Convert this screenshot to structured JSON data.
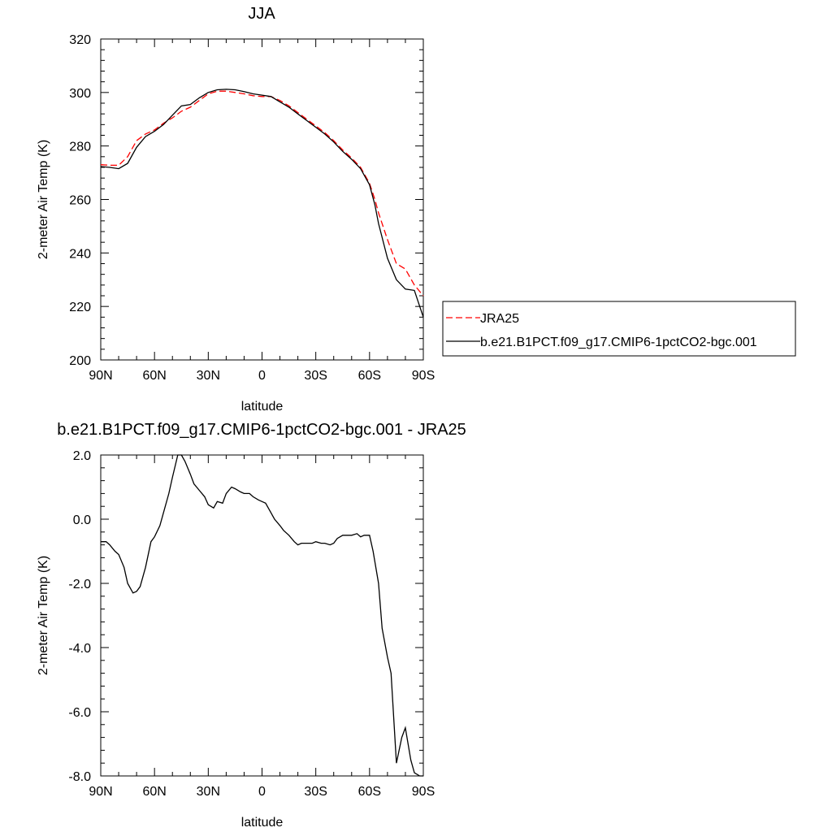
{
  "chart_data": [
    {
      "type": "line",
      "title": "JJA",
      "xlabel": "latitude",
      "ylabel": "2-meter Air Temp (K)",
      "x_range": [
        90,
        -90
      ],
      "ylim": [
        200,
        320
      ],
      "x_ticks": [
        90,
        60,
        30,
        0,
        -30,
        -60,
        -90
      ],
      "x_tick_labels": [
        "90N",
        "60N",
        "30N",
        "0",
        "30S",
        "60S",
        "90S"
      ],
      "y_ticks": [
        200,
        220,
        240,
        260,
        280,
        300,
        320
      ],
      "y_tick_labels": [
        "200",
        "220",
        "240",
        "260",
        "280",
        "300",
        "320"
      ],
      "legend_position": "right",
      "series": [
        {
          "name": "JRA25",
          "color": "#ff0000",
          "dash": "dashed",
          "x": [
            90,
            85,
            80,
            75,
            70,
            65,
            60,
            55,
            50,
            45,
            40,
            35,
            30,
            25,
            20,
            15,
            10,
            5,
            0,
            -5,
            -10,
            -15,
            -20,
            -25,
            -30,
            -35,
            -40,
            -45,
            -50,
            -55,
            -60,
            -63,
            -65,
            -70,
            -75,
            -80,
            -85,
            -90
          ],
          "y": [
            273.0,
            272.8,
            272.8,
            276.0,
            282.0,
            284.5,
            286.0,
            288.5,
            290.5,
            293.0,
            294.5,
            297.0,
            299.5,
            300.5,
            300.5,
            300.0,
            299.5,
            298.8,
            298.5,
            298.5,
            297.0,
            295.0,
            292.5,
            290.0,
            287.5,
            285.0,
            282.0,
            278.5,
            275.5,
            272.0,
            266.0,
            260.0,
            255.0,
            245.0,
            236.0,
            234.0,
            228.0,
            224.0
          ]
        },
        {
          "name": "b.e21.B1PCT.f09_g17.CMIP6-1pctCO2-bgc.001",
          "color": "#000000",
          "dash": "solid",
          "x": [
            90,
            85,
            80,
            75,
            70,
            65,
            60,
            55,
            50,
            45,
            40,
            35,
            30,
            25,
            20,
            15,
            10,
            5,
            0,
            -5,
            -10,
            -15,
            -20,
            -25,
            -30,
            -35,
            -40,
            -45,
            -50,
            -55,
            -60,
            -63,
            -65,
            -70,
            -75,
            -80,
            -85,
            -88,
            -90
          ],
          "y": [
            272.3,
            272.0,
            271.5,
            273.5,
            279.5,
            283.5,
            285.5,
            288.0,
            291.5,
            295.0,
            295.5,
            298.0,
            300.0,
            301.0,
            301.2,
            301.0,
            300.3,
            299.5,
            299.0,
            298.5,
            296.5,
            294.5,
            292.0,
            289.5,
            287.0,
            284.5,
            281.5,
            278.0,
            275.0,
            271.5,
            265.5,
            258.0,
            251.0,
            238.0,
            230.0,
            226.5,
            226.0,
            220.0,
            216.0
          ]
        }
      ]
    },
    {
      "type": "line",
      "title": "b.e21.B1PCT.f09_g17.CMIP6-1pctCO2-bgc.001 - JRA25",
      "xlabel": "latitude",
      "ylabel": "2-meter Air Temp (K)",
      "x_range": [
        90,
        -90
      ],
      "ylim": [
        -8.0,
        2.0
      ],
      "x_ticks": [
        90,
        60,
        30,
        0,
        -30,
        -60,
        -90
      ],
      "x_tick_labels": [
        "90N",
        "60N",
        "30N",
        "0",
        "30S",
        "60S",
        "90S"
      ],
      "y_ticks": [
        -8,
        -6,
        -4,
        -2,
        0,
        2
      ],
      "y_tick_labels": [
        "-8.0",
        "-6.0",
        "-4.0",
        "-2.0",
        "0.0",
        "2.0"
      ],
      "series": [
        {
          "color": "#000000",
          "dash": "solid",
          "x": [
            90,
            87,
            85,
            82,
            80,
            77,
            75,
            72,
            70,
            68,
            65,
            62,
            60,
            57,
            55,
            52,
            50,
            47,
            45,
            43,
            40,
            38,
            35,
            32,
            30,
            27,
            25,
            22,
            20,
            17,
            15,
            12,
            10,
            7,
            5,
            2,
            0,
            -2,
            -5,
            -7,
            -10,
            -12,
            -15,
            -18,
            -20,
            -22,
            -25,
            -28,
            -30,
            -33,
            -35,
            -38,
            -40,
            -42,
            -45,
            -48,
            -50,
            -53,
            -55,
            -57,
            -60,
            -62,
            -65,
            -67,
            -70,
            -72,
            -75,
            -78,
            -80,
            -83,
            -85,
            -88,
            -90
          ],
          "y": [
            -0.7,
            -0.7,
            -0.8,
            -1.0,
            -1.1,
            -1.5,
            -2.0,
            -2.3,
            -2.25,
            -2.1,
            -1.5,
            -0.7,
            -0.55,
            -0.2,
            0.2,
            0.8,
            1.3,
            2.0,
            2.0,
            1.8,
            1.4,
            1.1,
            0.9,
            0.7,
            0.45,
            0.35,
            0.55,
            0.5,
            0.8,
            1.0,
            0.95,
            0.85,
            0.8,
            0.8,
            0.7,
            0.6,
            0.55,
            0.5,
            0.2,
            0.0,
            -0.2,
            -0.35,
            -0.5,
            -0.7,
            -0.8,
            -0.75,
            -0.75,
            -0.75,
            -0.7,
            -0.75,
            -0.75,
            -0.8,
            -0.75,
            -0.6,
            -0.5,
            -0.5,
            -0.5,
            -0.45,
            -0.55,
            -0.5,
            -0.5,
            -1.0,
            -2.0,
            -3.4,
            -4.3,
            -4.8,
            -7.6,
            -6.8,
            -6.5,
            -7.5,
            -7.9,
            -8.0,
            -8.0
          ]
        }
      ]
    }
  ]
}
